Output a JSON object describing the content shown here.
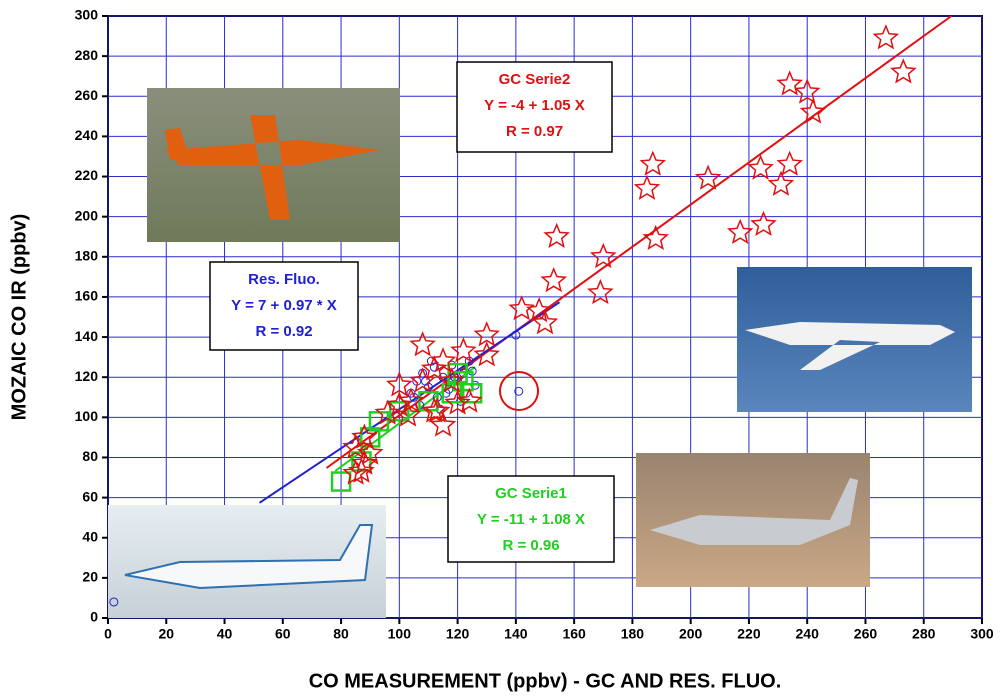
{
  "chart_data": {
    "type": "scatter",
    "xlabel": "CO MEASUREMENT (ppbv) - GC AND RES. FLUO.",
    "ylabel": "MOZAIC CO IR (ppbv)",
    "xlim": [
      0,
      300
    ],
    "ylim": [
      0,
      300
    ],
    "xticks": [
      0,
      20,
      40,
      60,
      80,
      100,
      120,
      140,
      160,
      180,
      200,
      220,
      240,
      260,
      280,
      300
    ],
    "yticks": [
      0,
      20,
      40,
      60,
      80,
      100,
      120,
      140,
      160,
      180,
      200,
      220,
      240,
      260,
      280,
      300
    ],
    "grid": true,
    "grid_color": "#2c2ccc",
    "series": [
      {
        "name": "GC Serie2",
        "equation": "Y = -4 + 1.05 X",
        "r": "R = 0.97",
        "color": "#e01010",
        "marker": "star",
        "x": [
          267,
          273,
          234,
          240,
          242,
          234,
          231,
          224,
          187,
          185,
          206,
          225,
          217,
          188,
          154,
          170,
          153,
          169,
          142,
          150,
          148,
          130,
          130,
          122,
          115,
          108,
          112,
          118,
          124,
          120,
          100,
          104,
          96,
          103,
          112,
          115,
          113,
          88,
          85,
          90,
          88,
          87,
          85,
          108,
          100
        ],
        "values": [
          289,
          272,
          266,
          262,
          252,
          226,
          216,
          224,
          226,
          214,
          219,
          196,
          192,
          189,
          190,
          180,
          168,
          162,
          154,
          147,
          153,
          141,
          131,
          133,
          128,
          136,
          124,
          118,
          108,
          107,
          116,
          108,
          102,
          101,
          103,
          96,
          103,
          90,
          85,
          82,
          77,
          73,
          72,
          118,
          106
        ],
        "fit_x": [
          75,
          289.5
        ],
        "fit_values": [
          74.75,
          300
        ]
      },
      {
        "name": "Res. Fluo.",
        "equation": "Y = 7 + 0.97 * X",
        "r": "R = 0.92",
        "color": "#2020d0",
        "marker": "circle",
        "x": [
          141,
          2,
          104,
          106,
          108,
          110,
          112,
          113,
          115,
          116,
          118,
          120,
          121,
          122,
          124,
          126,
          107,
          111,
          114,
          117,
          119,
          123,
          109,
          105,
          125,
          140
        ],
        "values": [
          113,
          8,
          112,
          118,
          122,
          115,
          125,
          110,
          120,
          112,
          126,
          118,
          108,
          122,
          128,
          116,
          106,
          128,
          104,
          114,
          120,
          112,
          118,
          110,
          123,
          141
        ],
        "fit_x": [
          52,
          155
        ],
        "fit_values": [
          57.4,
          157.4
        ]
      },
      {
        "name": "GC Serie1",
        "equation": "Y = -11 + 1.08 X",
        "r": "R = 0.96",
        "color": "#20d020",
        "marker": "square",
        "x": [
          80,
          87,
          90,
          93,
          100,
          110,
          118,
          122,
          125,
          120
        ],
        "values": [
          68,
          78,
          90,
          98,
          103,
          108,
          112,
          118,
          112,
          122
        ],
        "fit_x": [
          78,
          126
        ],
        "fit_values": [
          73.2,
          125.1
        ]
      }
    ]
  }
}
